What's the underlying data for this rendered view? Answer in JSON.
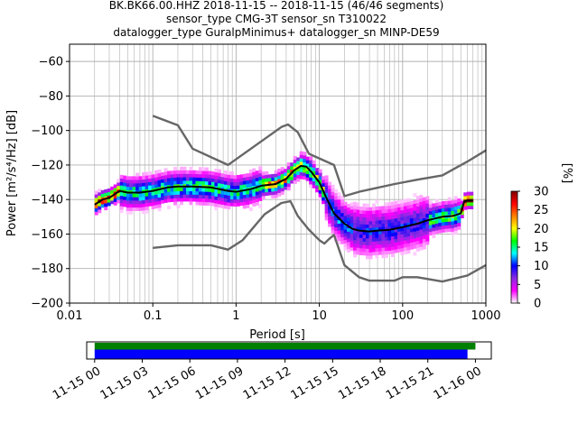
{
  "title": {
    "line1": "BK.BK66.00.HHZ   2018-11-15 -- 2018-11-15  (46/46 segments)",
    "line2": "sensor_type CMG-3T sensor_sn T310022",
    "line3": "datalogger_type GuralpMinimus+ datalogger_sn MINP-DE59"
  },
  "chart_data": [
    {
      "type": "heatmap",
      "xlabel": "Period [s]",
      "ylabel": "Power [m²/s⁴/Hz] [dB]",
      "xscale": "log",
      "xlim": [
        0.01,
        1000
      ],
      "ylim": [
        -200,
        -50
      ],
      "grid": true,
      "x_ticks": [
        {
          "value": 0.01,
          "label": "0.01"
        },
        {
          "value": 0.1,
          "label": "0.1"
        },
        {
          "value": 1,
          "label": "1"
        },
        {
          "value": 10,
          "label": "10"
        },
        {
          "value": 100,
          "label": "100"
        },
        {
          "value": 1000,
          "label": "1000"
        }
      ],
      "y_ticks": [
        {
          "value": -60,
          "label": "−60"
        },
        {
          "value": -80,
          "label": "−80"
        },
        {
          "value": -100,
          "label": "−100"
        },
        {
          "value": -120,
          "label": "−120"
        },
        {
          "value": -140,
          "label": "−140"
        },
        {
          "value": -160,
          "label": "−160"
        },
        {
          "value": -180,
          "label": "−180"
        },
        {
          "value": -200,
          "label": "−200"
        }
      ],
      "colorbar": {
        "label": "[%]",
        "range": [
          0,
          30
        ],
        "ticks": [
          {
            "value": 0,
            "label": "0"
          },
          {
            "value": 5,
            "label": "5"
          },
          {
            "value": 10,
            "label": "10"
          },
          {
            "value": 15,
            "label": "15"
          },
          {
            "value": 20,
            "label": "20"
          },
          {
            "value": 25,
            "label": "25"
          },
          {
            "value": 30,
            "label": "30"
          }
        ],
        "colors": [
          "#ffffff",
          "#ff00ff",
          "#8a2be2",
          "#0000ff",
          "#00ffff",
          "#00ff00",
          "#ffff00",
          "#ff8000",
          "#ff0000",
          "#800000"
        ]
      },
      "series": [
        {
          "color": "#666666",
          "x": [
            0.1,
            0.2,
            0.3,
            0.8,
            3.5,
            4.2,
            5.5,
            7.5,
            15,
            20,
            30,
            80,
            150,
            300,
            600,
            1000
          ],
          "y": [
            -91.5,
            -97,
            -110.5,
            -120,
            -98,
            -96.5,
            -101,
            -113.5,
            -120,
            -138,
            -135.5,
            -131,
            -128.5,
            -126,
            -118,
            -111.5
          ]
        },
        {
          "color": "#666666",
          "x": [
            0.1,
            0.2,
            0.5,
            0.8,
            1.2,
            2.2,
            3.5,
            4.5,
            5.5,
            7.5,
            10,
            11.5,
            13,
            15,
            20,
            30,
            40,
            60,
            80,
            100,
            150,
            300,
            600,
            1000
          ],
          "y": [
            -168,
            -166.5,
            -166.5,
            -169,
            -163.5,
            -148.5,
            -142,
            -141,
            -149.5,
            -157.5,
            -163.5,
            -165.5,
            -163,
            -160.5,
            -178,
            -185,
            -187,
            -187,
            -187,
            -185,
            -185,
            -187.5,
            -184,
            -178
          ]
        },
        {
          "color": "#000000",
          "x": [
            0.02,
            0.025,
            0.03,
            0.04,
            0.05,
            0.07,
            0.1,
            0.15,
            0.2,
            0.3,
            0.5,
            0.8,
            1,
            1.5,
            2,
            3,
            4,
            5,
            6,
            7,
            8,
            10,
            12,
            15,
            20,
            25,
            30,
            40,
            50,
            70,
            100,
            150,
            200,
            300,
            400,
            500,
            550,
            600,
            700
          ],
          "y": [
            -143,
            -140,
            -139,
            -135,
            -136,
            -136,
            -135,
            -133,
            -132.5,
            -132.5,
            -133,
            -135,
            -135.5,
            -134,
            -132,
            -131,
            -128,
            -123,
            -120.5,
            -121,
            -124,
            -130,
            -138.5,
            -148,
            -154,
            -157,
            -158,
            -158.5,
            -158,
            -157.5,
            -156,
            -154,
            -152,
            -150,
            -149.5,
            -148,
            -141,
            -140.5,
            -140.5
          ]
        }
      ]
    },
    {
      "type": "bar",
      "orientation": "horizontal",
      "x_tick_labels": [
        "11-15 00",
        "11-15 03",
        "11-15 06",
        "11-15 09",
        "11-15 12",
        "11-15 15",
        "11-15 18",
        "11-15 21",
        "11-16 00"
      ],
      "xlim": [
        "2018-11-14 23:30",
        "2018-11-16 01:00"
      ],
      "series": [
        {
          "color": "#008000",
          "start": "2018-11-15 00:00",
          "end": "2018-11-16 00:00"
        },
        {
          "color": "#0000ff",
          "start": "2018-11-15 00:00",
          "end": "2018-11-15 23:30"
        }
      ]
    }
  ]
}
